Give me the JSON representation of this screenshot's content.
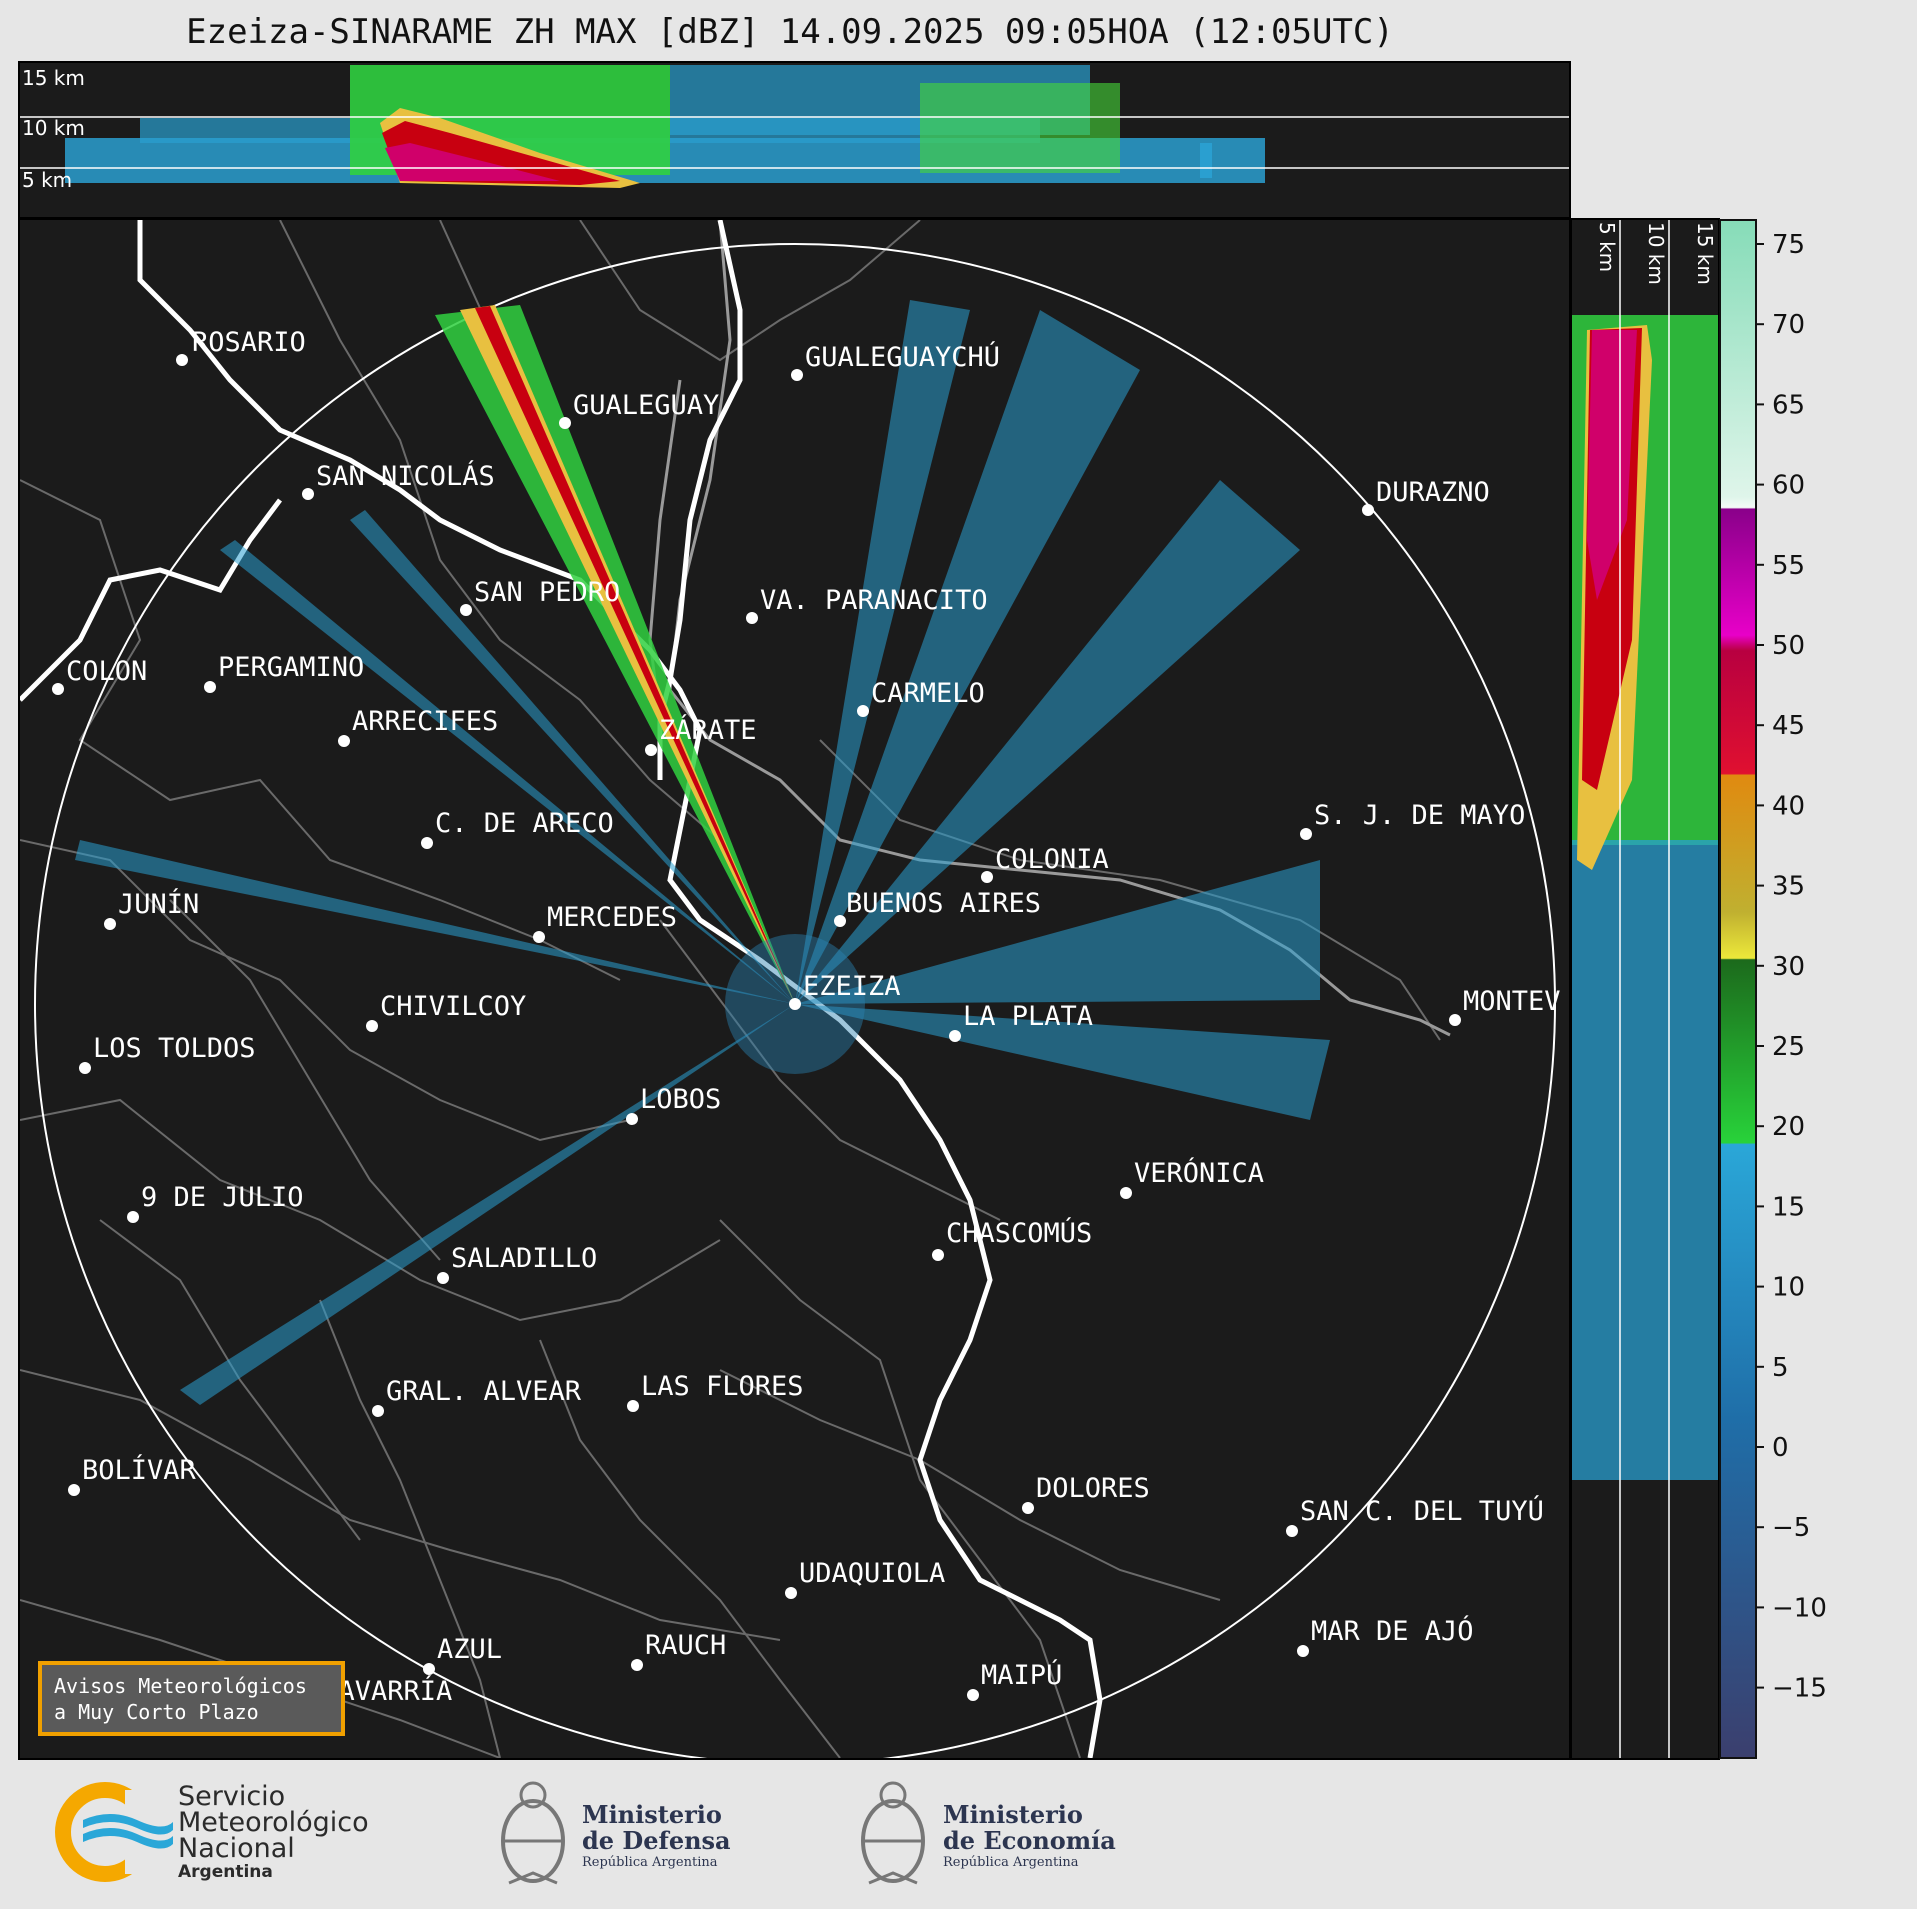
{
  "title": "Ezeiza-SINARAME ZH MAX [dBZ] 14.09.2025 09:05HOA (12:05UTC)",
  "height_labels": {
    "top": [
      "15 km",
      "10 km",
      "5 km"
    ],
    "side": [
      "5 km",
      "10 km",
      "15 km"
    ]
  },
  "cities": [
    {
      "name": "ROSARIO"
    },
    {
      "name": "GUALEGUAYCHÚ"
    },
    {
      "name": "GUALEGUAY"
    },
    {
      "name": "SAN NICOLÁS"
    },
    {
      "name": "DURAZNO"
    },
    {
      "name": "SAN PEDRO"
    },
    {
      "name": "VA. PARANACITO"
    },
    {
      "name": "COLON"
    },
    {
      "name": "PERGAMINO"
    },
    {
      "name": "CARMELO"
    },
    {
      "name": "ARRECIFES"
    },
    {
      "name": "ZÁRATE"
    },
    {
      "name": "S. J. DE MAYO"
    },
    {
      "name": "C. DE ARECO"
    },
    {
      "name": "COLONIA"
    },
    {
      "name": "JUNÍN"
    },
    {
      "name": "BUENOS AIRES"
    },
    {
      "name": "MERCEDES"
    },
    {
      "name": "MONTEV"
    },
    {
      "name": "EZEIZA"
    },
    {
      "name": "CHIVILCOY"
    },
    {
      "name": "LA PLATA"
    },
    {
      "name": "LOS TOLDOS"
    },
    {
      "name": "LOBOS"
    },
    {
      "name": "VERÓNICA"
    },
    {
      "name": "9 DE JULIO"
    },
    {
      "name": "CHASCOMÚS"
    },
    {
      "name": "SALADILLO"
    },
    {
      "name": "GRAL. ALVEAR"
    },
    {
      "name": "LAS FLORES"
    },
    {
      "name": "BOLÍVAR"
    },
    {
      "name": "DOLORES"
    },
    {
      "name": "SAN C. DEL TUYÚ"
    },
    {
      "name": "UDAQUIOLA"
    },
    {
      "name": "MAR DE AJÓ"
    },
    {
      "name": "AZUL"
    },
    {
      "name": "RAUCH"
    },
    {
      "name": "OLAVARRÍA"
    },
    {
      "name": "MAIPÚ"
    }
  ],
  "colorbar": {
    "ticks": [
      "75",
      "70",
      "65",
      "60",
      "55",
      "50",
      "45",
      "40",
      "35",
      "30",
      "25",
      "20",
      "15",
      "10",
      "5",
      "0",
      "−5",
      "−10",
      "−15"
    ],
    "colors": {
      "low": "#3b3f6e",
      "blue": "#2aa7d8",
      "green": "#28d23a",
      "yellow": "#ece83a",
      "orange": "#e08a10",
      "red": "#c80010",
      "magenta": "#e800c8",
      "white": "#f4fbf7",
      "mint": "#86dcb8"
    }
  },
  "aviso": {
    "line1": "Avisos Meteorológicos",
    "line2": "a Muy Corto Plazo"
  },
  "logos": {
    "smn": {
      "line1": "Servicio",
      "line2": "Meteorológico",
      "line3": "Nacional",
      "line4": "Argentina"
    },
    "defensa": {
      "line1": "Ministerio",
      "line2": "de Defensa",
      "line3": "República Argentina"
    },
    "economia": {
      "line1": "Ministerio",
      "line2": "de Economía",
      "line3": "República Argentina"
    }
  }
}
